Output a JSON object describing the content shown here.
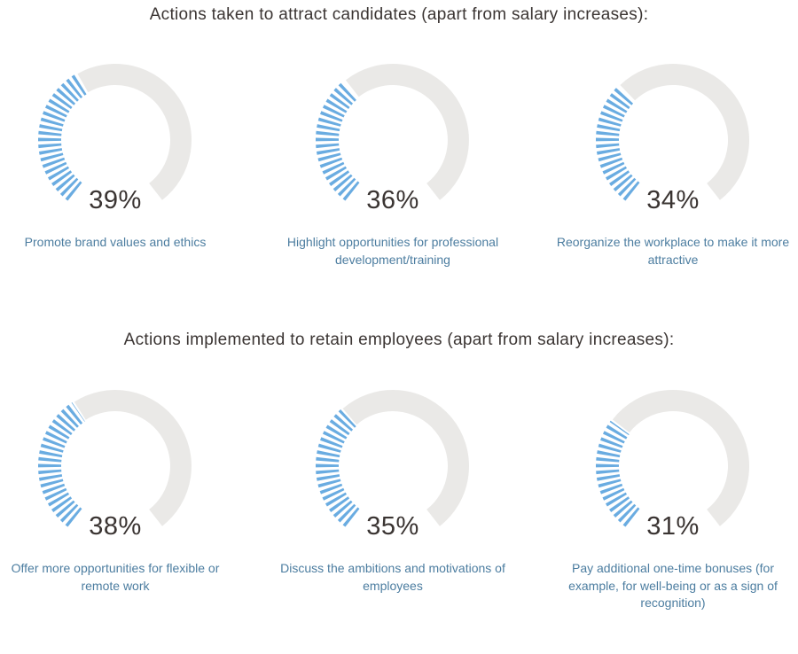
{
  "colors": {
    "background": "#ffffff",
    "title_text": "#3b3533",
    "percent_text": "#3a3432",
    "caption_text": "#4c7da0",
    "gauge_track_gray": "#eae9e7",
    "gauge_stripe_blue": "#6aace1"
  },
  "chart_data": [
    {
      "type": "gauge-row",
      "title": "Actions taken to attract candidates (apart from salary increases):",
      "gauge_style": "striped-arc-donut, open gap at bottom, fill grows clockwise from bottom-left",
      "max": 100,
      "gauges": [
        {
          "value": 39,
          "value_label": "39%",
          "caption": "Promote brand values and ethics"
        },
        {
          "value": 36,
          "value_label": "36%",
          "caption": "Highlight opportunities for professional development/training"
        },
        {
          "value": 34,
          "value_label": "34%",
          "caption": "Reorganize the workplace to make it more attractive"
        }
      ]
    },
    {
      "type": "gauge-row",
      "title": "Actions implemented to retain employees (apart from salary increases):",
      "gauge_style": "striped-arc-donut, open gap at bottom, fill grows clockwise from bottom-left",
      "max": 100,
      "gauges": [
        {
          "value": 38,
          "value_label": "38%",
          "caption": "Offer more opportunities for flexible or remote work"
        },
        {
          "value": 35,
          "value_label": "35%",
          "caption": "Discuss the ambitions and motivations of employees"
        },
        {
          "value": 31,
          "value_label": "31%",
          "caption": "Pay additional one-time bonuses (for example, for well-being or as a sign of recognition)"
        }
      ]
    }
  ]
}
